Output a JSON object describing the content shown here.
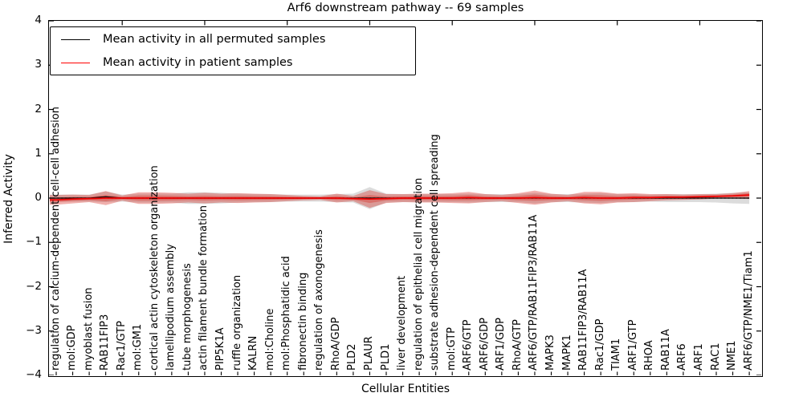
{
  "title": "Arf6 downstream pathway -- 69 samples",
  "legend": {
    "items": [
      {
        "label": "Mean activity in all permuted samples",
        "color": "#000000"
      },
      {
        "label": "Mean activity in patient samples",
        "color": "#ff0000"
      }
    ]
  },
  "chart_data": {
    "type": "line",
    "title": "Arf6 downstream pathway -- 69 samples",
    "xlabel": "Cellular Entities",
    "ylabel": "Inferred Activity",
    "ylim": [
      -4,
      4
    ],
    "yticks": [
      4,
      3,
      2,
      1,
      0,
      -1,
      -2,
      -3,
      -4
    ],
    "grid": false,
    "legend_position": "upper left",
    "categories": [
      "regulation of calcium-dependent cell-cell adhesion",
      "mol:GDP",
      "myoblast fusion",
      "RAB11FIP3",
      "Rac1/GTP",
      "mol:GM1",
      "cortical actin cytoskeleton organization",
      "lamellipodium assembly",
      "tube morphogenesis",
      "actin filament bundle formation",
      "PIP5K1A",
      "ruffle organization",
      "KALRN",
      "mol:Choline",
      "mol:Phosphatidic acid",
      "fibronectin binding",
      "regulation of axonogenesis",
      "RhoA/GDP",
      "PLD2",
      "PLAUR",
      "PLD1",
      "liver development",
      "regulation of epithelial cell migration",
      "substrate adhesion-dependent cell spreading",
      "mol:GTP",
      "ARF6/GTP",
      "ARF6/GDP",
      "ARF1/GDP",
      "RhoA/GTP",
      "ARF6/GTP/RAB11FIP3/RAB11A",
      "MAPK3",
      "MAPK1",
      "RAB11FIP3/RAB11A",
      "Rac1/GDP",
      "TIAM1",
      "ARF1/GTP",
      "RHOA",
      "RAB11A",
      "ARF6",
      "ARF1",
      "RAC1",
      "NME1",
      "ARF6/GTP/NME1/Tiam1"
    ],
    "series": [
      {
        "name": "Mean activity in all permuted samples",
        "color": "#000000",
        "style": "solid",
        "values": [
          0,
          0,
          0,
          0.03,
          0,
          0,
          0,
          0,
          0,
          0,
          0,
          0,
          0,
          0,
          0,
          0,
          0,
          0,
          0,
          0,
          0,
          0,
          0,
          0,
          0,
          0,
          0,
          0,
          0,
          0,
          0,
          0,
          0,
          0,
          0,
          0,
          0,
          0,
          0,
          0,
          0,
          0,
          0
        ]
      },
      {
        "name": "Mean activity in patient samples",
        "color": "#f00000",
        "style": "solid",
        "values": [
          -0.04,
          -0.02,
          -0.01,
          0,
          0,
          0,
          0,
          0,
          0,
          0,
          0,
          0,
          0,
          0,
          0,
          0,
          0,
          0,
          -0.01,
          -0.02,
          -0.01,
          0,
          0,
          0,
          0,
          0.01,
          0,
          0,
          0,
          0.01,
          0,
          0,
          0.01,
          0,
          0,
          0.01,
          0.01,
          0.02,
          0.02,
          0.03,
          0.04,
          0.05,
          0.07
        ]
      }
    ],
    "bands": [
      {
        "name": "permuted samples std band",
        "color": "rgba(130,130,130,0.28)",
        "center_series": 0,
        "halfwidths": [
          0.08,
          0.08,
          0.08,
          0.12,
          0.08,
          0.1,
          0.1,
          0.1,
          0.13,
          0.13,
          0.12,
          0.1,
          0.09,
          0.09,
          0.08,
          0.08,
          0.08,
          0.09,
          0.1,
          0.25,
          0.1,
          0.09,
          0.09,
          0.09,
          0.09,
          0.1,
          0.09,
          0.09,
          0.09,
          0.12,
          0.09,
          0.09,
          0.1,
          0.11,
          0.09,
          0.09,
          0.08,
          0.09,
          0.09,
          0.09,
          0.1,
          0.12,
          0.13
        ]
      },
      {
        "name": "patient samples std band",
        "color": "rgba(215,48,39,0.38)",
        "center_series": 1,
        "halfwidths": [
          0.11,
          0.1,
          0.08,
          0.16,
          0.06,
          0.13,
          0.13,
          0.12,
          0.1,
          0.12,
          0.1,
          0.11,
          0.1,
          0.09,
          0.07,
          0.05,
          0.04,
          0.1,
          0.06,
          0.2,
          0.1,
          0.09,
          0.1,
          0.1,
          0.11,
          0.13,
          0.09,
          0.07,
          0.11,
          0.16,
          0.1,
          0.07,
          0.13,
          0.14,
          0.1,
          0.1,
          0.08,
          0.07,
          0.06,
          0.06,
          0.05,
          0.06,
          0.09
        ]
      },
      {
        "name": "patient samples inner band",
        "color": "rgba(215,48,39,0.38)",
        "center_series": 1,
        "scale_of_band": 1,
        "halfwidth_scale": 0.45
      }
    ],
    "zero_line": {
      "value": 0,
      "style": "dotted",
      "color": "#000000"
    }
  }
}
